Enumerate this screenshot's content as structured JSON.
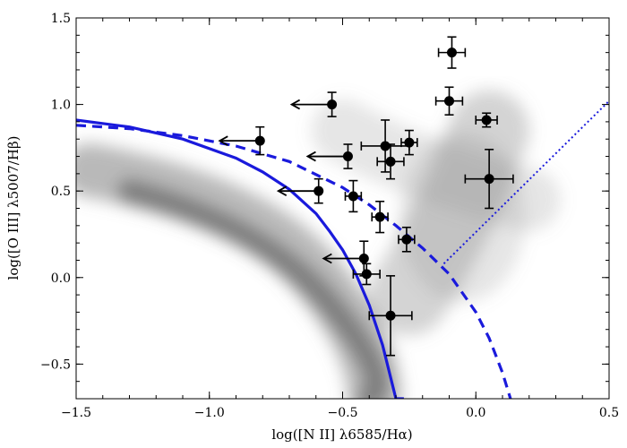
{
  "chart_data": {
    "type": "scatter",
    "title": "",
    "xlabel": "log([N II] λ6585/Hα)",
    "ylabel": "log([O III] λ5007/Hβ)",
    "xlim": [
      -1.5,
      0.5
    ],
    "ylim": [
      -0.7,
      1.5
    ],
    "x_ticks": [
      -1.5,
      -1.0,
      -0.5,
      0.0,
      0.5
    ],
    "x_tick_labels": [
      "−1.5",
      "−1.0",
      "−0.5",
      "0.0",
      "0.5"
    ],
    "y_ticks": [
      -0.5,
      0.0,
      0.5,
      1.0,
      1.5
    ],
    "y_tick_labels": [
      "−0.5",
      "0.0",
      "0.5",
      "1.0",
      "1.5"
    ],
    "grid": false,
    "background": "grayscale density of galaxies (star-forming and AGN branches)",
    "colors": {
      "points": "#000000",
      "curves": "#1a1adc",
      "density": "#808080"
    },
    "curves": [
      {
        "style": "solid",
        "x": [
          -1.5,
          -1.3,
          -1.1,
          -0.9,
          -0.8,
          -0.7,
          -0.6,
          -0.55,
          -0.5,
          -0.45,
          -0.4,
          -0.35,
          -0.3,
          -0.27
        ],
        "y": [
          0.91,
          0.87,
          0.8,
          0.69,
          0.61,
          0.51,
          0.37,
          0.27,
          0.16,
          0.02,
          -0.16,
          -0.39,
          -0.7,
          -0.7
        ]
      },
      {
        "style": "dashed",
        "x": [
          -1.5,
          -1.3,
          -1.1,
          -0.9,
          -0.7,
          -0.5,
          -0.4,
          -0.3,
          -0.2,
          -0.1,
          0.0,
          0.05,
          0.1,
          0.13
        ],
        "y": [
          0.88,
          0.86,
          0.82,
          0.76,
          0.67,
          0.52,
          0.42,
          0.3,
          0.17,
          0.02,
          -0.2,
          -0.35,
          -0.55,
          -0.7
        ]
      },
      {
        "style": "dotted",
        "x": [
          -0.12,
          0.5
        ],
        "y": [
          0.08,
          1.02
        ]
      }
    ],
    "points": [
      {
        "x": -0.09,
        "y": 1.3,
        "xerr": 0.05,
        "yerr": 0.09,
        "upper_limit_x": false
      },
      {
        "x": -0.1,
        "y": 1.02,
        "xerr": 0.05,
        "yerr": 0.08,
        "upper_limit_x": false
      },
      {
        "x": 0.04,
        "y": 0.91,
        "xerr": 0.04,
        "yerr": 0.04,
        "upper_limit_x": false
      },
      {
        "x": -0.54,
        "y": 1.0,
        "xerr": 0.0,
        "yerr": 0.07,
        "upper_limit_x": true
      },
      {
        "x": -0.81,
        "y": 0.79,
        "xerr": 0.0,
        "yerr": 0.08,
        "upper_limit_x": true
      },
      {
        "x": -0.34,
        "y": 0.76,
        "xerr": 0.09,
        "yerr": 0.15,
        "upper_limit_x": false
      },
      {
        "x": -0.25,
        "y": 0.78,
        "xerr": 0.03,
        "yerr": 0.07,
        "upper_limit_x": false
      },
      {
        "x": -0.48,
        "y": 0.7,
        "xerr": 0.0,
        "yerr": 0.07,
        "upper_limit_x": true
      },
      {
        "x": -0.32,
        "y": 0.67,
        "xerr": 0.05,
        "yerr": 0.1,
        "upper_limit_x": false
      },
      {
        "x": 0.05,
        "y": 0.57,
        "xerr": 0.09,
        "yerr": 0.17,
        "upper_limit_x": false
      },
      {
        "x": -0.59,
        "y": 0.5,
        "xerr": 0.0,
        "yerr": 0.07,
        "upper_limit_x": true
      },
      {
        "x": -0.46,
        "y": 0.47,
        "xerr": 0.03,
        "yerr": 0.09,
        "upper_limit_x": false
      },
      {
        "x": -0.36,
        "y": 0.35,
        "xerr": 0.03,
        "yerr": 0.09,
        "upper_limit_x": false
      },
      {
        "x": -0.26,
        "y": 0.22,
        "xerr": 0.03,
        "yerr": 0.07,
        "upper_limit_x": false
      },
      {
        "x": -0.42,
        "y": 0.11,
        "xerr": 0.0,
        "yerr": 0.1,
        "upper_limit_x": true
      },
      {
        "x": -0.41,
        "y": 0.02,
        "xerr": 0.05,
        "yerr": 0.06,
        "upper_limit_x": false
      },
      {
        "x": -0.32,
        "y": -0.22,
        "xerr": 0.08,
        "yerr": 0.23,
        "upper_limit_x": false
      }
    ]
  }
}
